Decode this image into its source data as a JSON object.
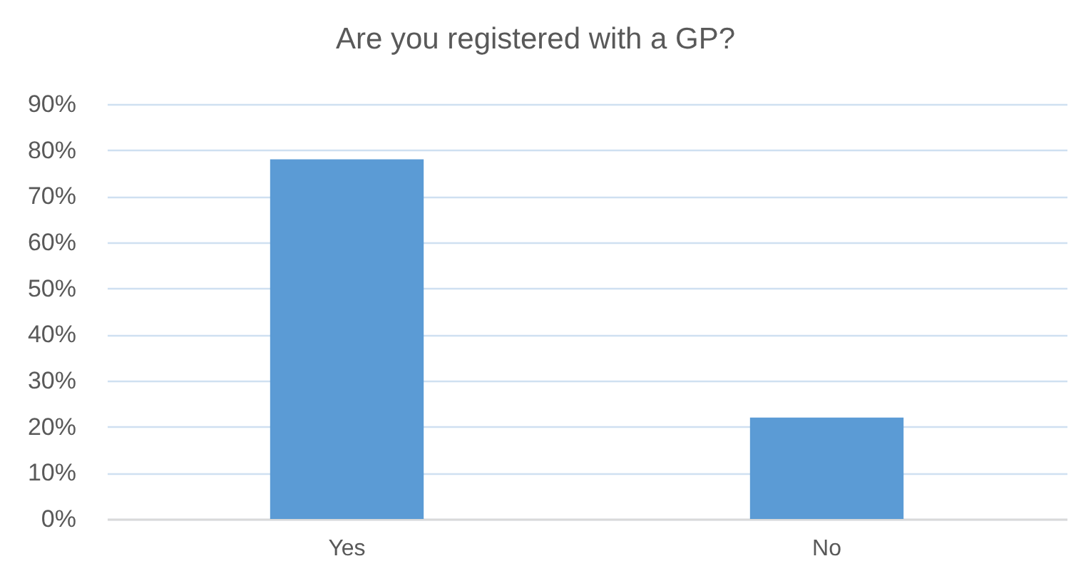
{
  "chart_data": {
    "type": "bar",
    "title": "Are you registered with a GP?",
    "categories": [
      "Yes",
      "No"
    ],
    "values": [
      78,
      22
    ],
    "color": "#5b9bd5",
    "ylim": [
      0,
      90
    ],
    "yticks": [
      {
        "value": 0,
        "label": "0%"
      },
      {
        "value": 10,
        "label": "10%"
      },
      {
        "value": 20,
        "label": "20%"
      },
      {
        "value": 30,
        "label": "30%"
      },
      {
        "value": 40,
        "label": "40%"
      },
      {
        "value": 50,
        "label": "50%"
      },
      {
        "value": 60,
        "label": "60%"
      },
      {
        "value": 70,
        "label": "70%"
      },
      {
        "value": 80,
        "label": "80%"
      },
      {
        "value": 90,
        "label": "90%"
      }
    ],
    "grid": "y"
  }
}
